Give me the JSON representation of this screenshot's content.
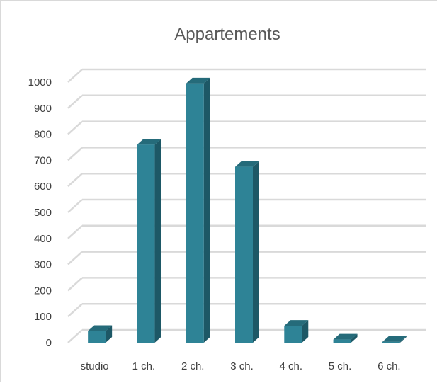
{
  "chart_data": {
    "type": "bar",
    "title": "Appartements",
    "categories": [
      "studio",
      "1 ch.",
      "2 ch.",
      "3 ch.",
      "4 ch.",
      "5 ch.",
      "6 ch."
    ],
    "values": [
      45,
      760,
      995,
      675,
      65,
      12,
      3
    ],
    "ylim": [
      0,
      1000
    ],
    "yticks": [
      0,
      100,
      200,
      300,
      400,
      500,
      600,
      700,
      800,
      900,
      1000
    ],
    "ytick_labels": [
      "0",
      "100",
      "200",
      "300",
      "400",
      "500",
      "600",
      "700",
      "800",
      "900",
      "1000"
    ],
    "xlabel": "",
    "ylabel": "",
    "grid": true,
    "legend": false,
    "style": "3d-column",
    "colors": {
      "bar_front": "#2e8396",
      "bar_side": "#1d5866",
      "bar_top": "#256b7a",
      "grid": "#d9d9d9",
      "title": "#595959",
      "tick": "#404040"
    }
  }
}
